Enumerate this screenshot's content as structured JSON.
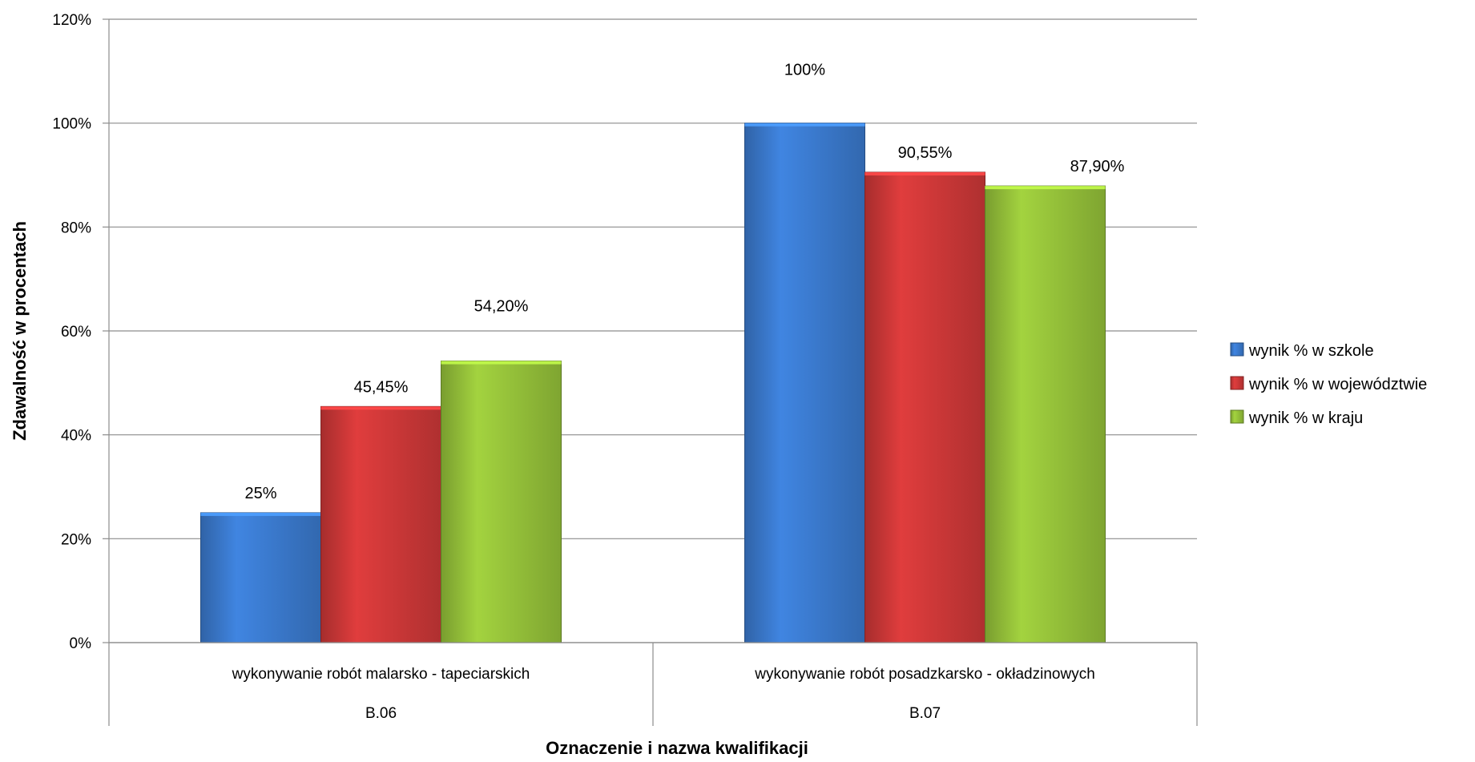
{
  "chart_data": {
    "type": "bar",
    "ylabel": "Zdawalność w procentach",
    "xlabel": "Oznaczenie i nazwa kwalifikacji",
    "ylim": [
      0,
      120
    ],
    "yticks": [
      "0%",
      "20%",
      "40%",
      "60%",
      "80%",
      "100%",
      "120%"
    ],
    "categories": [
      {
        "name": "wykonywanie robót malarsko - tapeciarskich",
        "code": "B.06"
      },
      {
        "name": "wykonywanie robót posadzkarsko - okładzinowych",
        "code": "B.07"
      }
    ],
    "series": [
      {
        "name": "wynik % w szkole",
        "color": "#3d7fd6",
        "values": [
          25,
          100
        ],
        "labels": [
          "25%",
          "100%"
        ]
      },
      {
        "name": "wynik % w województwie",
        "color": "#d53a3a",
        "values": [
          45.45,
          90.55
        ],
        "labels": [
          "45,45%",
          "90,55%"
        ]
      },
      {
        "name": "wynik % w kraju",
        "color": "#9bc93c",
        "values": [
          54.2,
          87.9
        ],
        "labels": [
          "54,20%",
          "87,90%"
        ]
      }
    ],
    "grid": true,
    "legend_position": "right"
  }
}
